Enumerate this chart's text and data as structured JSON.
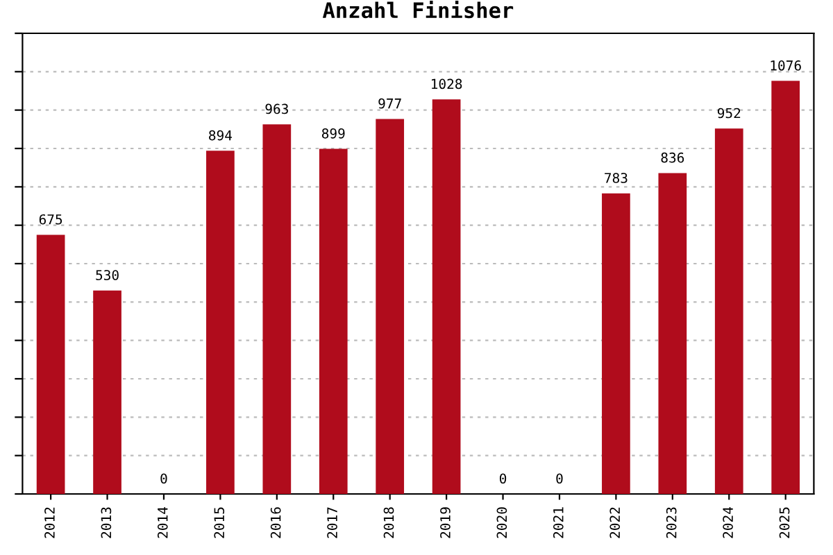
{
  "chart_data": {
    "type": "bar",
    "title": "Anzahl Finisher",
    "categories": [
      "2012",
      "2013",
      "2014",
      "2015",
      "2016",
      "2017",
      "2018",
      "2019",
      "2020",
      "2021",
      "2022",
      "2023",
      "2024",
      "2025"
    ],
    "values": [
      675,
      530,
      0,
      894,
      963,
      899,
      977,
      1028,
      0,
      0,
      783,
      836,
      952,
      1076
    ],
    "color": "#b00c1c",
    "data_labels": true,
    "ylim": [
      0,
      1200
    ],
    "yticks": [
      {
        "value": 0,
        "label": null
      },
      {
        "value": 100,
        "label": null
      },
      {
        "value": 200,
        "label": null
      },
      {
        "value": 300,
        "label": null
      },
      {
        "value": 400,
        "label": null
      },
      {
        "value": 500,
        "label": null
      },
      {
        "value": 600,
        "label": null
      },
      {
        "value": 700,
        "label": null
      },
      {
        "value": 800,
        "label": null
      },
      {
        "value": 900,
        "label": null
      },
      {
        "value": 1000,
        "label": null
      },
      {
        "value": 1100,
        "label": null
      },
      {
        "value": 1200,
        "label": null
      }
    ],
    "tick_labels": "x",
    "grid": "y"
  }
}
